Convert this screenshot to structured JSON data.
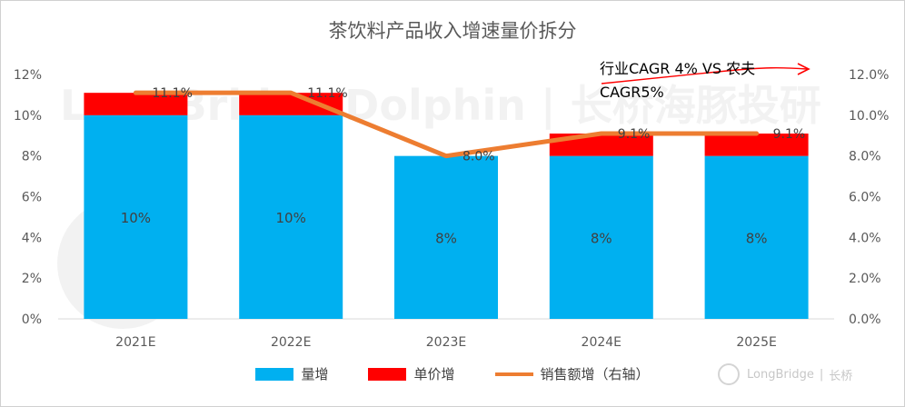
{
  "chart_data": {
    "type": "bar",
    "stacked": true,
    "title": "茶饮料产品收入增速量价拆分",
    "categories": [
      "2021E",
      "2022E",
      "2023E",
      "2024E",
      "2025E"
    ],
    "series": [
      {
        "name": "量增",
        "values": [
          0.1,
          0.1,
          0.08,
          0.08,
          0.08
        ],
        "labels": [
          "10%",
          "10%",
          "8%",
          "8%",
          "8%"
        ],
        "color": "#00b0f0"
      },
      {
        "name": "单价增",
        "values": [
          0.011,
          0.011,
          0.0,
          0.011,
          0.011
        ],
        "color": "#ff0000"
      }
    ],
    "line_series": {
      "name": "销售额增（右轴）",
      "values": [
        0.111,
        0.111,
        0.08,
        0.091,
        0.091
      ],
      "labels": [
        "11.1%",
        "11.1%",
        "8.0%",
        "9.1%",
        "9.1%"
      ],
      "color": "#ed7d31",
      "axis": "right"
    },
    "left_axis": {
      "min": 0,
      "max": 0.12,
      "ticks": [
        "0%",
        "2%",
        "4%",
        "6%",
        "8%",
        "10%",
        "12%"
      ]
    },
    "right_axis": {
      "min": 0,
      "max": 0.12,
      "ticks": [
        "0.0%",
        "2.0%",
        "4.0%",
        "6.0%",
        "8.0%",
        "10.0%",
        "12.0%"
      ]
    },
    "grid": false,
    "legend_position": "bottom"
  },
  "annotation": {
    "line1": "行业CAGR 4% VS 农夫",
    "line2": "CAGR5%",
    "arrow_color": "#ff0000"
  },
  "watermark": "LongBridge Dolphin | 长桥海豚投研",
  "brand": {
    "name": "LongBridge",
    "suffix": "长桥"
  }
}
